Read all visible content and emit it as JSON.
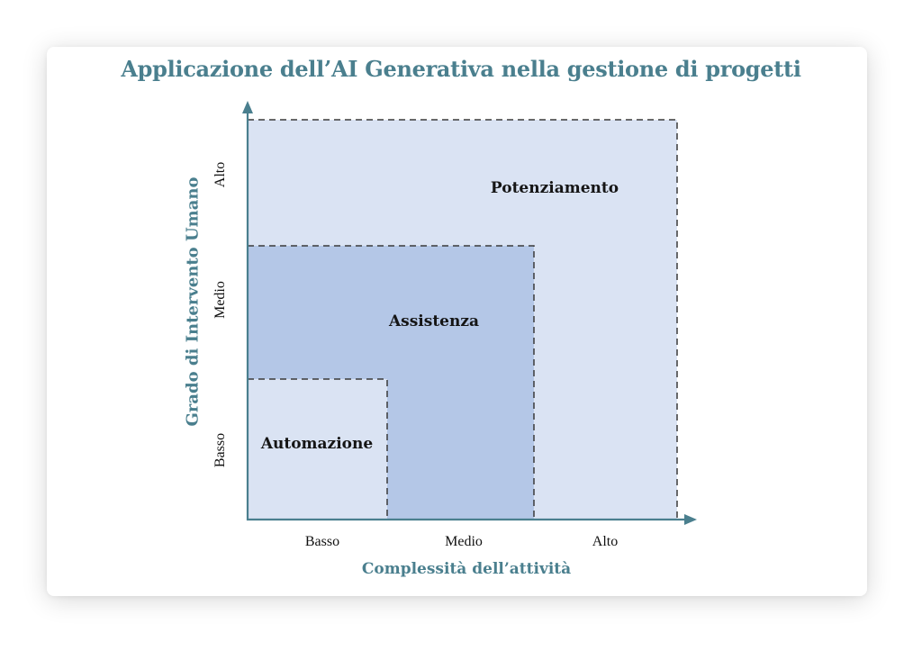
{
  "title": "Applicazione dell’AI Generativa nella gestione di progetti",
  "y_axis": {
    "title": "Grado di Intervento Umano",
    "ticks": [
      "Basso",
      "Medio",
      "Alto"
    ]
  },
  "x_axis": {
    "title": "Complessità dell’attività",
    "ticks": [
      "Basso",
      "Medio",
      "Alto"
    ]
  },
  "zones": [
    {
      "label": "Automazione",
      "x_level": "Basso",
      "y_level": "Basso",
      "fill": "#dae3f3"
    },
    {
      "label": "Assistenza",
      "x_level": "Medio",
      "y_level": "Medio",
      "fill": "#b4c7e7"
    },
    {
      "label": "Potenziamento",
      "x_level": "Alto",
      "y_level": "Alto",
      "fill": "#dae3f3"
    }
  ],
  "colors": {
    "accent": "#4a7f8e",
    "zone_light": "#dae3f3",
    "zone_mid": "#b4c7e7",
    "dash": "#3a3a3a"
  }
}
